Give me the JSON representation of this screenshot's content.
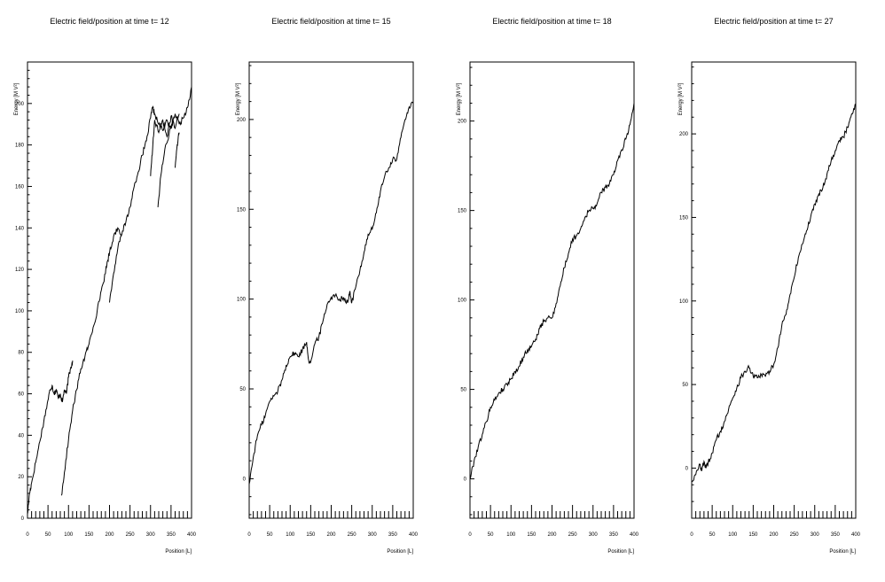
{
  "chart_data": [
    {
      "type": "line",
      "title": "Electric field/position at time t= 12",
      "xlabel": "Position [L]",
      "ylabel": "Energy [M V²]",
      "xlim": [
        0,
        400
      ],
      "ylim": [
        0,
        220
      ],
      "xticks": [
        0,
        50,
        100,
        150,
        200,
        250,
        300,
        350,
        400
      ],
      "yticks": [
        0,
        20,
        40,
        60,
        80,
        100,
        120,
        140,
        160,
        180,
        200
      ],
      "grid": false,
      "series": [
        {
          "x": [
            0,
            5,
            10,
            20,
            30,
            40,
            50,
            55,
            60,
            65,
            70,
            75,
            80,
            85,
            90,
            95,
            100,
            105,
            110
          ],
          "y": [
            2,
            12,
            17,
            27,
            37,
            47,
            57,
            62,
            64,
            60,
            62,
            58,
            60,
            56,
            62,
            60,
            68,
            72,
            76
          ]
        },
        {
          "x": [
            83,
            90,
            100,
            110,
            120,
            130,
            140,
            150,
            160,
            170,
            180,
            190,
            195,
            200,
            210,
            220,
            230,
            240,
            250,
            260,
            270,
            280,
            290,
            300,
            305,
            310,
            320,
            330,
            340,
            350,
            360,
            370,
            380,
            390,
            400
          ],
          "y": [
            11,
            22,
            38,
            52,
            62,
            72,
            78,
            84,
            92,
            100,
            110,
            118,
            124,
            128,
            136,
            140,
            137,
            143,
            150,
            160,
            167,
            175,
            182,
            193,
            198,
            195,
            190,
            187,
            192,
            188,
            195,
            190,
            193,
            198,
            208
          ]
        },
        {
          "x": [
            200,
            210,
            220,
            230
          ],
          "y": [
            104,
            118,
            130,
            137
          ]
        },
        {
          "x": [
            300,
            305,
            310,
            320,
            330,
            340,
            350,
            360,
            370
          ],
          "y": [
            165,
            178,
            192,
            186,
            192,
            184,
            194,
            188,
            195
          ]
        },
        {
          "x": [
            318,
            325,
            335,
            345,
            355
          ],
          "y": [
            150,
            165,
            178,
            185,
            192
          ]
        },
        {
          "x": [
            360,
            365,
            370
          ],
          "y": [
            169,
            180,
            186
          ]
        }
      ]
    },
    {
      "type": "line",
      "title": "Electric field/position at time t= 15",
      "xlabel": "Position [L]",
      "ylabel": "Energy [M V²]",
      "xlim": [
        0,
        400
      ],
      "ylim": [
        -22,
        232
      ],
      "xticks": [
        0,
        50,
        100,
        150,
        200,
        250,
        300,
        350,
        400
      ],
      "yticks": [
        0,
        50,
        100,
        150,
        200
      ],
      "grid": false,
      "series": [
        {
          "x": [
            0,
            10,
            20,
            30,
            40,
            50,
            60,
            70,
            80,
            90,
            100,
            110,
            120,
            130,
            140,
            145,
            150,
            160,
            170,
            180,
            190,
            200,
            210,
            220,
            230,
            240,
            245,
            250,
            260,
            270,
            280,
            290,
            300,
            310,
            320,
            330,
            340,
            350,
            360,
            370,
            380,
            390,
            400
          ],
          "y": [
            -3,
            12,
            24,
            30,
            36,
            43,
            46,
            49,
            55,
            63,
            68,
            70,
            68,
            72,
            76,
            66,
            65,
            75,
            79,
            88,
            97,
            101,
            102,
            100,
            101,
            98,
            104,
            98,
            107,
            116,
            126,
            136,
            139,
            148,
            160,
            168,
            173,
            178,
            178,
            190,
            200,
            207,
            209
          ]
        }
      ]
    },
    {
      "type": "line",
      "title": "Electric field/position at time t= 18",
      "xlabel": "Position [L]",
      "ylabel": "Energy [M V²]",
      "xlim": [
        0,
        400
      ],
      "ylim": [
        -22,
        233
      ],
      "xticks": [
        0,
        50,
        100,
        150,
        200,
        250,
        300,
        350,
        400
      ],
      "yticks": [
        0,
        50,
        100,
        150,
        200
      ],
      "grid": false,
      "series": [
        {
          "x": [
            0,
            10,
            20,
            30,
            40,
            50,
            60,
            70,
            80,
            90,
            100,
            110,
            120,
            130,
            140,
            150,
            160,
            170,
            180,
            190,
            200,
            210,
            220,
            230,
            240,
            250,
            260,
            270,
            280,
            290,
            300,
            310,
            320,
            330,
            340,
            350,
            360,
            370,
            380,
            390,
            400
          ],
          "y": [
            0,
            10,
            18,
            25,
            32,
            40,
            44,
            48,
            50,
            53,
            56,
            60,
            63,
            68,
            72,
            74,
            78,
            84,
            88,
            90,
            90,
            98,
            108,
            118,
            126,
            134,
            136,
            140,
            146,
            150,
            151,
            154,
            160,
            163,
            165,
            170,
            178,
            184,
            190,
            198,
            210
          ]
        }
      ]
    },
    {
      "type": "line",
      "title": "Electric field/position at time t= 27",
      "xlabel": "Position [L]",
      "ylabel": "Energy [M V²]",
      "xlim": [
        0,
        400
      ],
      "ylim": [
        -30,
        243
      ],
      "xticks": [
        0,
        50,
        100,
        150,
        200,
        250,
        300,
        350,
        400
      ],
      "yticks": [
        0,
        50,
        100,
        150,
        200
      ],
      "grid": false,
      "series": [
        {
          "x": [
            0,
            10,
            20,
            25,
            30,
            35,
            40,
            50,
            60,
            70,
            80,
            90,
            100,
            110,
            120,
            130,
            140,
            150,
            160,
            170,
            180,
            190,
            200,
            210,
            220,
            230,
            240,
            250,
            260,
            270,
            280,
            290,
            300,
            310,
            320,
            330,
            340,
            350,
            360,
            370,
            380,
            390,
            400
          ],
          "y": [
            -8,
            -4,
            2,
            -1,
            4,
            0,
            3,
            9,
            17,
            22,
            28,
            35,
            42,
            48,
            54,
            58,
            60,
            55,
            54,
            56,
            55,
            58,
            62,
            72,
            86,
            92,
            104,
            114,
            126,
            134,
            142,
            150,
            158,
            164,
            168,
            176,
            184,
            190,
            196,
            198,
            204,
            212,
            218
          ]
        }
      ]
    }
  ]
}
